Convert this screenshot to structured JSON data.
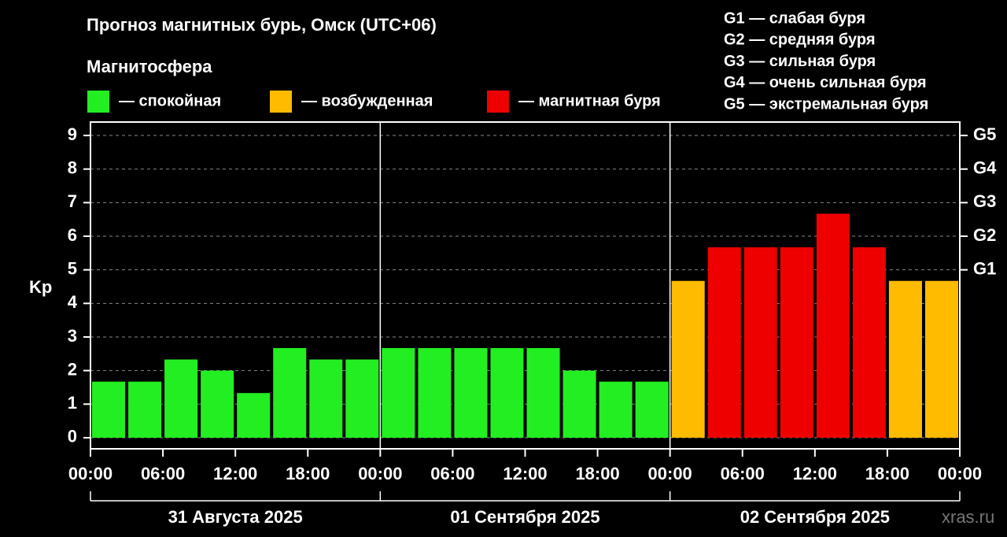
{
  "chart_data": {
    "type": "bar",
    "title": "Прогноз магнитных бурь, Омск (UTC+06)",
    "legend_title": "Магнитосфера",
    "legend": [
      {
        "name": "— спокойная",
        "color": "#22ee22"
      },
      {
        "name": "— возбужденная",
        "color": "#ffbb00"
      },
      {
        "name": "— магнитная буря",
        "color": "#ee0000"
      }
    ],
    "storm_levels": [
      "G1 — слабая буря",
      "G2 — средняя буря",
      "G3 — сильная буря",
      "G4 — очень сильная буря",
      "G5 — экстремальная буря"
    ],
    "y_label": "Kp",
    "x": [
      0,
      3,
      6,
      9,
      12,
      15,
      18,
      21,
      24,
      27,
      30,
      33,
      36,
      39,
      42,
      45,
      48,
      51,
      54,
      57,
      60,
      63,
      66,
      69
    ],
    "values": [
      1.67,
      1.67,
      2.33,
      2.0,
      1.33,
      2.67,
      2.33,
      2.33,
      2.67,
      2.67,
      2.67,
      2.67,
      2.67,
      2.0,
      1.67,
      1.67,
      4.67,
      5.67,
      5.67,
      5.67,
      6.67,
      5.67,
      4.67,
      4.67
    ],
    "bar_colors": [
      "#22ee22",
      "#22ee22",
      "#22ee22",
      "#22ee22",
      "#22ee22",
      "#22ee22",
      "#22ee22",
      "#22ee22",
      "#22ee22",
      "#22ee22",
      "#22ee22",
      "#22ee22",
      "#22ee22",
      "#22ee22",
      "#22ee22",
      "#22ee22",
      "#ffbb00",
      "#ee0000",
      "#ee0000",
      "#ee0000",
      "#ee0000",
      "#ee0000",
      "#ffbb00",
      "#ffbb00"
    ],
    "xlim": [
      0,
      72
    ],
    "xticks": [
      {
        "value": 0,
        "label": "00:00"
      },
      {
        "value": 6,
        "label": "06:00"
      },
      {
        "value": 12,
        "label": "12:00"
      },
      {
        "value": 18,
        "label": "18:00"
      },
      {
        "value": 24,
        "label": "00:00"
      },
      {
        "value": 30,
        "label": "06:00"
      },
      {
        "value": 36,
        "label": "12:00"
      },
      {
        "value": 42,
        "label": "18:00"
      },
      {
        "value": 48,
        "label": "00:00"
      },
      {
        "value": 54,
        "label": "06:00"
      },
      {
        "value": 60,
        "label": "12:00"
      },
      {
        "value": 66,
        "label": "18:00"
      },
      {
        "value": 72,
        "label": "00:00"
      }
    ],
    "days": [
      "31 Августа 2025",
      "01 Сентября 2025",
      "02 Сентября 2025"
    ],
    "ylim": [
      -0.33,
      9.4
    ],
    "yticks": [
      0,
      1,
      2,
      3,
      4,
      5,
      6,
      7,
      8,
      9
    ],
    "y2lim": [
      -0.33,
      9.4
    ],
    "y2ticks": [
      {
        "value": 5,
        "label": "G1"
      },
      {
        "value": 6,
        "label": "G2"
      },
      {
        "value": 7,
        "label": "G3"
      },
      {
        "value": 8,
        "label": "G4"
      },
      {
        "value": 9,
        "label": "G5"
      }
    ],
    "grid": true,
    "watermark": "xras.ru"
  }
}
